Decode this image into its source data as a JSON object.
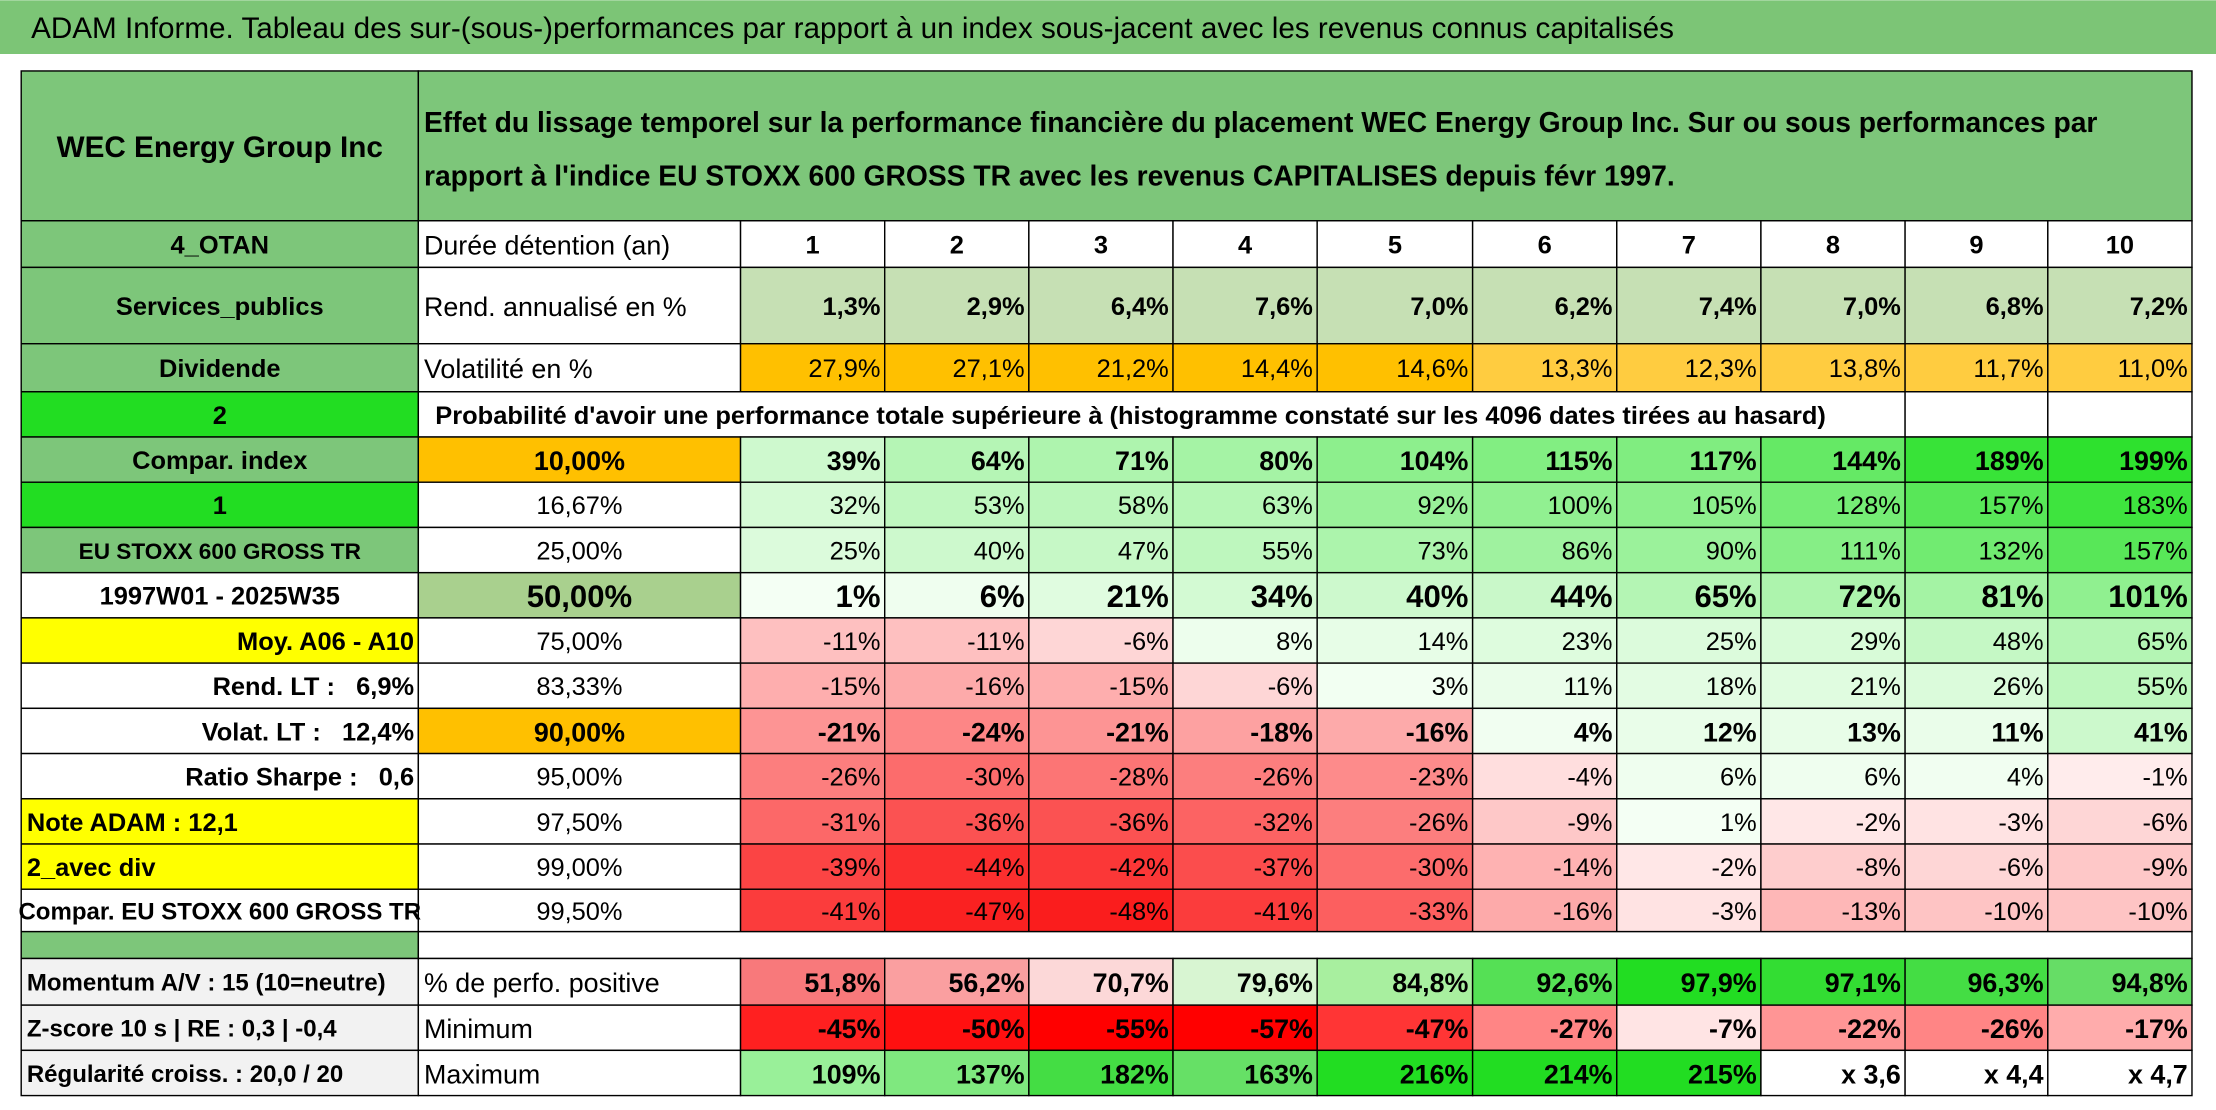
{
  "title": "ADAM Informe. Tableau des sur-(sous-)performances par rapport à un index sous-jacent avec les revenus connus capitalisés",
  "sidebar": [
    "WEC Energy Group Inc",
    "4_OTAN",
    "Services_publics",
    "Dividende",
    "2",
    "Compar. index",
    "1",
    "EU STOXX 600 GROSS TR",
    "1997W01 - 2025W35",
    "Moy. A06 - A10",
    "Rend. LT :   6,9%",
    "Volat. LT :   12,4%",
    "Ratio Sharpe :   0,6",
    "Note ADAM : 12,1",
    "2_avec div",
    "Compar. EU STOXX 600 GROSS TR"
  ],
  "description": [
    "Effet du lissage temporel sur la performance financière du placement WEC Energy Group Inc. Sur ou sous performances par",
    "rapport à l'indice EU STOXX 600 GROSS TR avec les revenus CAPITALISES depuis févr 1997."
  ],
  "holding": {
    "label": "Durée détention (an)",
    "years": [
      1,
      2,
      3,
      4,
      5,
      6,
      7,
      8,
      9,
      10
    ]
  },
  "annual_return": {
    "label": "Rend. annualisé en %",
    "values": [
      "1,3%",
      "2,9%",
      "6,4%",
      "7,6%",
      "7,0%",
      "6,2%",
      "7,4%",
      "7,0%",
      "6,8%",
      "7,2%"
    ]
  },
  "volatility": {
    "label": "Volatilité en %",
    "values": [
      "27,9%",
      "27,1%",
      "21,2%",
      "14,4%",
      "14,6%",
      "13,3%",
      "12,3%",
      "13,8%",
      "11,7%",
      "11,0%"
    ]
  },
  "probability_title": "Probabilité d'avoir une performance totale supérieure à (histogramme constaté sur les 4096 dates tirées au hasard)",
  "percentiles": [
    {
      "level": "10,00%",
      "values": [
        "39%",
        "64%",
        "71%",
        "80%",
        "104%",
        "115%",
        "117%",
        "144%",
        "189%",
        "199%"
      ]
    },
    {
      "level": "16,67%",
      "values": [
        "32%",
        "53%",
        "58%",
        "63%",
        "92%",
        "100%",
        "105%",
        "128%",
        "157%",
        "183%"
      ]
    },
    {
      "level": "25,00%",
      "values": [
        "25%",
        "40%",
        "47%",
        "55%",
        "73%",
        "86%",
        "90%",
        "111%",
        "132%",
        "157%"
      ]
    },
    {
      "level": "50,00%",
      "values": [
        "1%",
        "6%",
        "21%",
        "34%",
        "40%",
        "44%",
        "65%",
        "72%",
        "81%",
        "101%"
      ]
    },
    {
      "level": "75,00%",
      "values": [
        "-11%",
        "-11%",
        "-6%",
        "8%",
        "14%",
        "23%",
        "25%",
        "29%",
        "48%",
        "65%"
      ]
    },
    {
      "level": "83,33%",
      "values": [
        "-15%",
        "-16%",
        "-15%",
        "-6%",
        "3%",
        "11%",
        "18%",
        "21%",
        "26%",
        "55%"
      ]
    },
    {
      "level": "90,00%",
      "values": [
        "-21%",
        "-24%",
        "-21%",
        "-18%",
        "-16%",
        "4%",
        "12%",
        "13%",
        "11%",
        "41%"
      ]
    },
    {
      "level": "95,00%",
      "values": [
        "-26%",
        "-30%",
        "-28%",
        "-26%",
        "-23%",
        "-4%",
        "6%",
        "6%",
        "4%",
        "-1%"
      ]
    },
    {
      "level": "97,50%",
      "values": [
        "-31%",
        "-36%",
        "-36%",
        "-32%",
        "-26%",
        "-9%",
        "1%",
        "-2%",
        "-3%",
        "-6%"
      ]
    },
    {
      "level": "99,00%",
      "values": [
        "-39%",
        "-44%",
        "-42%",
        "-37%",
        "-30%",
        "-14%",
        "-2%",
        "-8%",
        "-6%",
        "-9%"
      ]
    },
    {
      "level": "99,50%",
      "values": [
        "-41%",
        "-47%",
        "-48%",
        "-41%",
        "-33%",
        "-16%",
        "-3%",
        "-13%",
        "-10%",
        "-10%"
      ]
    }
  ],
  "stats": [
    {
      "note": "Momentum A/V : 15 (10=neutre)",
      "label": "% de perfo. positive",
      "values": [
        "51,8%",
        "56,2%",
        "70,7%",
        "79,6%",
        "84,8%",
        "92,6%",
        "97,9%",
        "97,1%",
        "96,3%",
        "94,8%"
      ]
    },
    {
      "note": "Z-score 10 s | RE : 0,3 | -0,4",
      "label": "Minimum",
      "values": [
        "-45%",
        "-50%",
        "-55%",
        "-57%",
        "-47%",
        "-27%",
        "-7%",
        "-22%",
        "-26%",
        "-17%"
      ]
    },
    {
      "note": "Régularité croiss. : 20,0 / 20",
      "label": "Maximum",
      "values": [
        "109%",
        "137%",
        "182%",
        "163%",
        "216%",
        "214%",
        "215%",
        "x 3,6",
        "x 4,4",
        "x 4,7"
      ]
    }
  ]
}
